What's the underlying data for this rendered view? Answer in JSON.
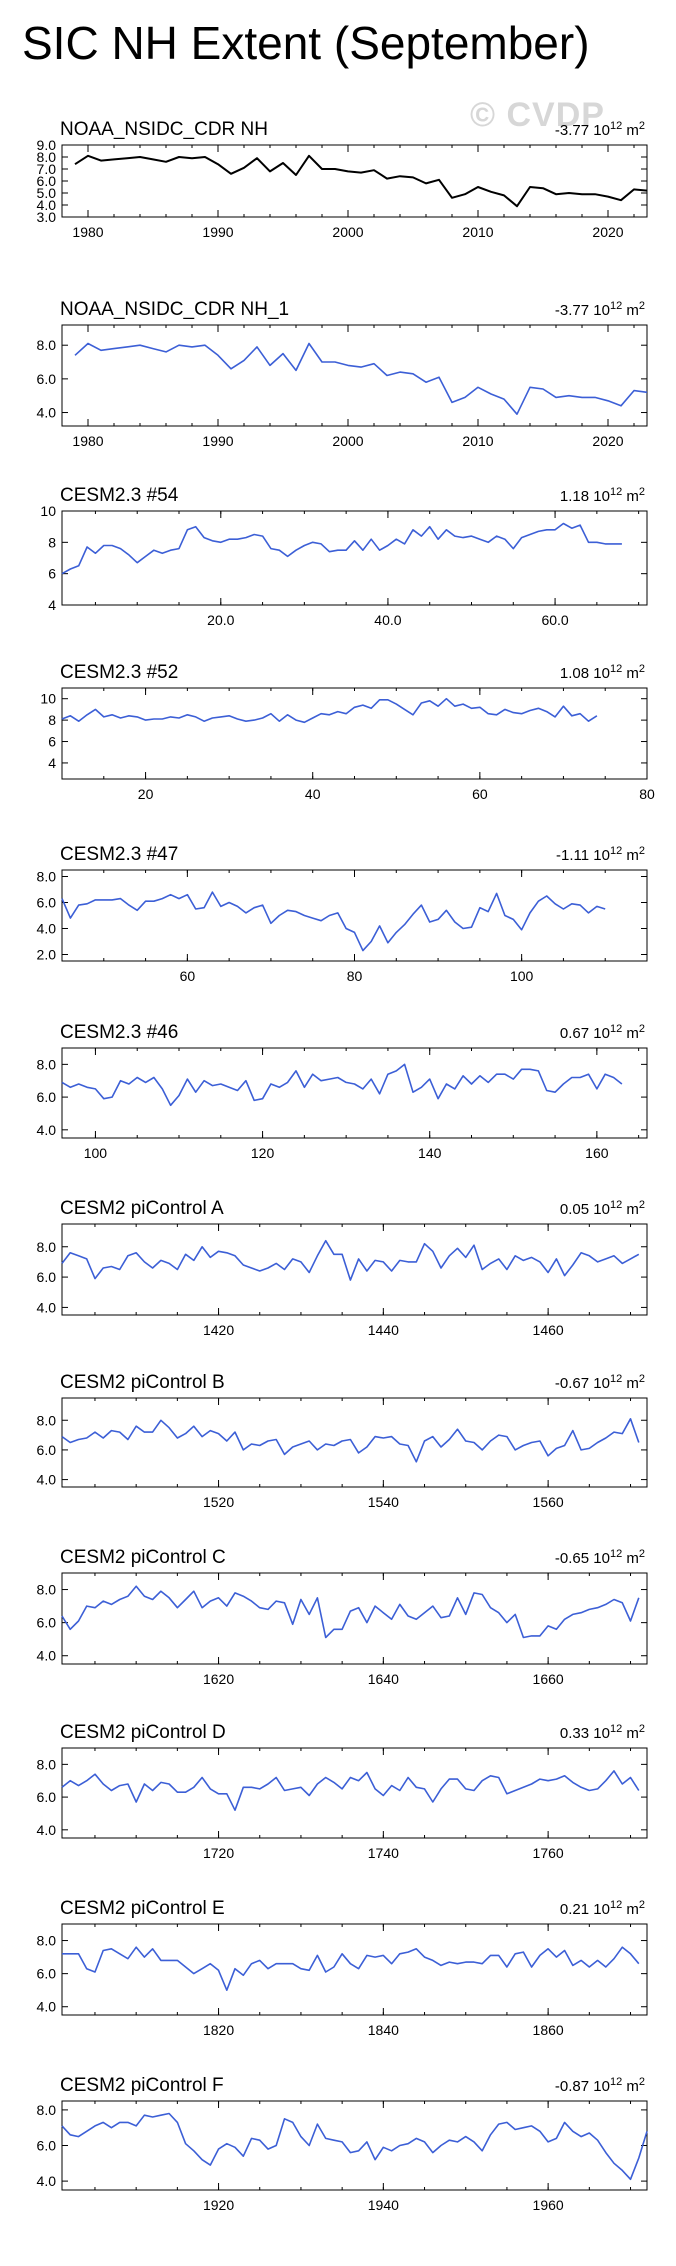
{
  "title": "SIC NH Extent (September)",
  "watermark": "© CVDP",
  "colors": {
    "observed": "#000000",
    "model": "#3c5fd6",
    "axis": "#000000"
  },
  "chart_data": [
    {
      "type": "line",
      "title": "NOAA_NSIDC_CDR NH",
      "trend": "-3.77 10",
      "trend_exp": "12",
      "trend_unit": " m",
      "trend_unit_exp": "2",
      "xlim": [
        1978,
        2023
      ],
      "ylim": [
        3.0,
        9.0
      ],
      "yticks": [
        3.0,
        4.0,
        5.0,
        6.0,
        7.0,
        8.0,
        9.0
      ],
      "yticklabels": [
        "3.0",
        "4.0",
        "5.0",
        "6.0",
        "7.0",
        "8.0",
        "9.0"
      ],
      "xticks": [
        1980,
        1990,
        2000,
        2010,
        2020
      ],
      "xticklabels": [
        "1980",
        "1990",
        "2000",
        "2010",
        "2020"
      ],
      "x_start": 1979,
      "values": [
        7.4,
        8.1,
        7.7,
        7.8,
        7.9,
        8.0,
        7.8,
        7.6,
        8.0,
        7.9,
        8.0,
        7.4,
        6.6,
        7.1,
        7.9,
        6.8,
        7.5,
        6.5,
        8.1,
        7.0,
        7.0,
        6.8,
        6.7,
        6.9,
        6.2,
        6.4,
        6.3,
        5.8,
        6.1,
        4.6,
        4.9,
        5.5,
        5.1,
        4.8,
        3.9,
        5.5,
        5.4,
        4.9,
        5.0,
        4.9,
        4.9,
        4.7,
        4.4,
        5.3,
        5.2
      ]
    },
    {
      "type": "line",
      "title": "NOAA_NSIDC_CDR NH_1",
      "trend": "-3.77 10",
      "trend_exp": "12",
      "trend_unit": " m",
      "trend_unit_exp": "2",
      "xlim": [
        1978,
        2023
      ],
      "ylim": [
        3.2,
        9.2
      ],
      "yticks": [
        4.0,
        6.0,
        8.0
      ],
      "yticklabels": [
        "4.0",
        "6.0",
        "8.0"
      ],
      "xticks": [
        1980,
        1990,
        2000,
        2010,
        2020
      ],
      "xticklabels": [
        "1980",
        "1990",
        "2000",
        "2010",
        "2020"
      ],
      "x_start": 1979,
      "values": [
        7.4,
        8.1,
        7.7,
        7.8,
        7.9,
        8.0,
        7.8,
        7.6,
        8.0,
        7.9,
        8.0,
        7.4,
        6.6,
        7.1,
        7.9,
        6.8,
        7.5,
        6.5,
        8.1,
        7.0,
        7.0,
        6.8,
        6.7,
        6.9,
        6.2,
        6.4,
        6.3,
        5.8,
        6.1,
        4.6,
        4.9,
        5.5,
        5.1,
        4.8,
        3.9,
        5.5,
        5.4,
        4.9,
        5.0,
        4.9,
        4.9,
        4.7,
        4.4,
        5.3,
        5.2
      ]
    },
    {
      "type": "line",
      "title": "CESM2.3 #54",
      "trend": "1.18 10",
      "trend_exp": "12",
      "trend_unit": " m",
      "trend_unit_exp": "2",
      "xlim": [
        1,
        71
      ],
      "ylim": [
        4.0,
        10.0
      ],
      "yticks": [
        4,
        6,
        8,
        10
      ],
      "yticklabels": [
        "4",
        "6",
        "8",
        "10"
      ],
      "xticks": [
        20,
        40,
        60
      ],
      "xticklabels": [
        "20.0",
        "40.0",
        "60.0"
      ],
      "x_start": 1,
      "values": [
        6.0,
        6.3,
        6.5,
        7.7,
        7.3,
        7.8,
        7.8,
        7.6,
        7.2,
        6.7,
        7.1,
        7.5,
        7.3,
        7.5,
        7.6,
        8.8,
        9.0,
        8.3,
        8.1,
        8.0,
        8.2,
        8.2,
        8.3,
        8.5,
        8.4,
        7.6,
        7.5,
        7.1,
        7.5,
        7.8,
        8.0,
        7.9,
        7.4,
        7.5,
        7.5,
        8.1,
        7.5,
        8.2,
        7.5,
        7.8,
        8.2,
        7.9,
        8.8,
        8.4,
        9.0,
        8.2,
        8.8,
        8.4,
        8.3,
        8.4,
        8.2,
        8.0,
        8.4,
        8.2,
        7.6,
        8.3,
        8.5,
        8.7,
        8.8,
        8.8,
        9.2,
        8.9,
        9.1,
        8.0,
        8.0,
        7.9,
        7.9,
        7.9
      ]
    },
    {
      "type": "line",
      "title": "CESM2.3 #52",
      "trend": "1.08 10",
      "trend_exp": "12",
      "trend_unit": " m",
      "trend_unit_exp": "2",
      "xlim": [
        10,
        80
      ],
      "ylim": [
        2.5,
        11.0
      ],
      "yticks": [
        4,
        6,
        8,
        10
      ],
      "yticklabels": [
        "4",
        "6",
        "8",
        "10"
      ],
      "xticks": [
        20,
        40,
        60,
        80
      ],
      "xticklabels": [
        "20",
        "40",
        "60",
        "80"
      ],
      "x_start": 10,
      "values": [
        8.1,
        8.4,
        7.9,
        8.5,
        9.0,
        8.3,
        8.5,
        8.2,
        8.4,
        8.3,
        8.0,
        8.1,
        8.1,
        8.3,
        8.2,
        8.5,
        8.3,
        7.9,
        8.2,
        8.3,
        8.4,
        8.1,
        7.9,
        8.0,
        8.2,
        8.6,
        7.9,
        8.5,
        8.0,
        7.8,
        8.2,
        8.6,
        8.5,
        8.8,
        8.6,
        9.2,
        9.4,
        9.1,
        9.9,
        9.9,
        9.5,
        9.0,
        8.5,
        9.6,
        9.8,
        9.3,
        10.0,
        9.3,
        9.5,
        9.1,
        9.2,
        8.6,
        8.5,
        9.0,
        8.7,
        8.6,
        8.9,
        9.1,
        8.8,
        8.3,
        9.3,
        8.4,
        8.6,
        7.9,
        8.4
      ]
    },
    {
      "type": "line",
      "title": "CESM2.3 #47",
      "trend": "-1.11 10",
      "trend_exp": "12",
      "trend_unit": " m",
      "trend_unit_exp": "2",
      "xlim": [
        45,
        115
      ],
      "ylim": [
        1.5,
        8.5
      ],
      "yticks": [
        2.0,
        4.0,
        6.0,
        8.0
      ],
      "yticklabels": [
        "2.0",
        "4.0",
        "6.0",
        "8.0"
      ],
      "xticks": [
        60,
        80,
        100
      ],
      "xticklabels": [
        "60",
        "80",
        "100"
      ],
      "x_start": 45,
      "values": [
        6.3,
        4.8,
        5.8,
        5.9,
        6.2,
        6.2,
        6.2,
        6.3,
        5.8,
        5.4,
        6.1,
        6.1,
        6.3,
        6.6,
        6.3,
        6.6,
        5.5,
        5.6,
        6.8,
        5.7,
        6.0,
        5.7,
        5.2,
        5.6,
        5.8,
        4.4,
        5.0,
        5.4,
        5.3,
        5.0,
        4.8,
        4.6,
        5.0,
        5.2,
        4.0,
        3.7,
        2.3,
        3.0,
        4.2,
        2.9,
        3.7,
        4.3,
        5.1,
        5.8,
        4.5,
        4.7,
        5.4,
        4.5,
        4.0,
        4.1,
        5.6,
        5.3,
        6.7,
        5.0,
        4.7,
        3.9,
        5.2,
        6.1,
        6.5,
        5.9,
        5.5,
        5.9,
        5.8,
        5.2,
        5.7,
        5.5
      ]
    },
    {
      "type": "line",
      "title": "CESM2.3 #46",
      "trend": "0.67 10",
      "trend_exp": "12",
      "trend_unit": " m",
      "trend_unit_exp": "2",
      "xlim": [
        96,
        166
      ],
      "ylim": [
        3.5,
        9.0
      ],
      "yticks": [
        4.0,
        6.0,
        8.0
      ],
      "yticklabels": [
        "4.0",
        "6.0",
        "8.0"
      ],
      "xticks": [
        100,
        120,
        140,
        160
      ],
      "xticklabels": [
        "100",
        "120",
        "140",
        "160"
      ],
      "x_start": 96,
      "values": [
        6.9,
        6.6,
        6.8,
        6.6,
        6.5,
        5.9,
        6.0,
        7.0,
        6.8,
        7.2,
        6.9,
        7.2,
        6.5,
        5.5,
        6.1,
        7.1,
        6.3,
        7.0,
        6.7,
        6.8,
        6.6,
        6.4,
        7.0,
        5.8,
        5.9,
        6.8,
        6.6,
        6.9,
        7.6,
        6.6,
        7.4,
        7.0,
        7.1,
        7.2,
        6.9,
        6.8,
        6.5,
        7.1,
        6.2,
        7.4,
        7.6,
        8.0,
        6.3,
        6.6,
        7.1,
        5.9,
        6.8,
        6.5,
        7.3,
        6.8,
        7.3,
        6.9,
        7.4,
        7.4,
        7.1,
        7.7,
        7.7,
        7.6,
        6.4,
        6.3,
        6.8,
        7.2,
        7.2,
        7.4,
        6.5,
        7.4,
        7.2,
        6.8
      ]
    },
    {
      "type": "line",
      "title": "CESM2 piControl A",
      "trend": "0.05 10",
      "trend_exp": "12",
      "trend_unit": " m",
      "trend_unit_exp": "2",
      "xlim": [
        1401,
        1472
      ],
      "ylim": [
        3.5,
        9.5
      ],
      "yticks": [
        4.0,
        6.0,
        8.0
      ],
      "yticklabels": [
        "4.0",
        "6.0",
        "8.0"
      ],
      "xticks": [
        1420,
        1440,
        1460
      ],
      "xticklabels": [
        "1420",
        "1440",
        "1460"
      ],
      "x_start": 1401,
      "values": [
        6.9,
        7.6,
        7.4,
        7.2,
        5.9,
        6.6,
        6.7,
        6.5,
        7.4,
        7.6,
        7.0,
        6.6,
        7.1,
        6.9,
        6.5,
        7.5,
        7.1,
        8.0,
        7.3,
        7.7,
        7.6,
        7.4,
        6.8,
        6.6,
        6.4,
        6.6,
        6.9,
        6.5,
        7.2,
        7.0,
        6.3,
        7.4,
        8.4,
        7.5,
        7.5,
        5.8,
        7.2,
        6.4,
        7.1,
        7.0,
        6.4,
        7.1,
        7.0,
        7.0,
        8.2,
        7.7,
        6.6,
        7.4,
        7.9,
        7.3,
        8.1,
        6.5,
        6.9,
        7.2,
        6.5,
        7.4,
        7.1,
        7.3,
        7.0,
        6.3,
        7.2,
        6.1,
        6.8,
        7.6,
        7.4,
        7.0,
        7.2,
        7.4,
        6.9,
        7.2,
        7.5
      ]
    },
    {
      "type": "line",
      "title": "CESM2 piControl B",
      "trend": "-0.67 10",
      "trend_exp": "12",
      "trend_unit": " m",
      "trend_unit_exp": "2",
      "xlim": [
        1501,
        1572
      ],
      "ylim": [
        3.5,
        9.5
      ],
      "yticks": [
        4.0,
        6.0,
        8.0
      ],
      "yticklabels": [
        "4.0",
        "6.0",
        "8.0"
      ],
      "xticks": [
        1520,
        1540,
        1560
      ],
      "xticklabels": [
        "1520",
        "1540",
        "1560"
      ],
      "x_start": 1501,
      "values": [
        6.9,
        6.5,
        6.7,
        6.8,
        7.2,
        6.8,
        7.3,
        7.2,
        6.7,
        7.6,
        7.2,
        7.2,
        8.0,
        7.5,
        6.8,
        7.1,
        7.6,
        6.9,
        7.3,
        7.1,
        6.6,
        7.2,
        6.0,
        6.4,
        6.3,
        6.6,
        6.7,
        5.7,
        6.2,
        6.4,
        6.6,
        6.0,
        6.4,
        6.3,
        6.6,
        6.7,
        5.8,
        6.2,
        6.9,
        6.8,
        6.9,
        6.4,
        6.3,
        5.2,
        6.6,
        6.9,
        6.2,
        6.7,
        7.4,
        6.6,
        6.5,
        6.0,
        6.6,
        7.0,
        6.9,
        6.0,
        6.3,
        6.5,
        6.6,
        5.6,
        6.1,
        6.3,
        7.3,
        6.0,
        6.1,
        6.5,
        6.8,
        7.2,
        7.1,
        8.1,
        6.5
      ]
    },
    {
      "type": "line",
      "title": "CESM2 piControl C",
      "trend": "-0.65 10",
      "trend_exp": "12",
      "trend_unit": " m",
      "trend_unit_exp": "2",
      "xlim": [
        1601,
        1672
      ],
      "ylim": [
        3.5,
        9.0
      ],
      "yticks": [
        4.0,
        6.0,
        8.0
      ],
      "yticklabels": [
        "4.0",
        "6.0",
        "8.0"
      ],
      "xticks": [
        1620,
        1640,
        1660
      ],
      "xticklabels": [
        "1620",
        "1640",
        "1660"
      ],
      "x_start": 1601,
      "values": [
        6.4,
        5.6,
        6.1,
        7.0,
        6.9,
        7.3,
        7.1,
        7.4,
        7.6,
        8.2,
        7.6,
        7.4,
        7.9,
        7.5,
        6.9,
        7.4,
        7.9,
        6.9,
        7.3,
        7.5,
        7.0,
        7.8,
        7.6,
        7.3,
        6.9,
        6.8,
        7.3,
        7.2,
        5.9,
        7.4,
        6.5,
        7.5,
        5.1,
        5.6,
        5.6,
        6.7,
        6.9,
        6.0,
        7.0,
        6.6,
        6.2,
        7.1,
        6.4,
        6.2,
        6.6,
        7.0,
        6.3,
        6.4,
        7.5,
        6.5,
        7.8,
        7.7,
        6.9,
        6.6,
        6.0,
        6.5,
        5.1,
        5.2,
        5.2,
        5.8,
        5.6,
        6.2,
        6.5,
        6.6,
        6.8,
        6.9,
        7.1,
        7.4,
        7.2,
        6.1,
        7.5
      ]
    },
    {
      "type": "line",
      "title": "CESM2 piControl D",
      "trend": "0.33 10",
      "trend_exp": "12",
      "trend_unit": " m",
      "trend_unit_exp": "2",
      "xlim": [
        1701,
        1772
      ],
      "ylim": [
        3.5,
        9.0
      ],
      "yticks": [
        4.0,
        6.0,
        8.0
      ],
      "yticklabels": [
        "4.0",
        "6.0",
        "8.0"
      ],
      "xticks": [
        1720,
        1740,
        1760
      ],
      "xticklabels": [
        "1720",
        "1740",
        "1760"
      ],
      "x_start": 1701,
      "values": [
        6.6,
        7.0,
        6.7,
        7.0,
        7.4,
        6.8,
        6.4,
        6.7,
        6.8,
        5.7,
        6.8,
        6.4,
        6.9,
        6.8,
        6.3,
        6.3,
        6.6,
        7.2,
        6.5,
        6.2,
        6.2,
        5.2,
        6.6,
        6.6,
        6.5,
        6.8,
        7.2,
        6.4,
        6.5,
        6.6,
        6.1,
        6.8,
        7.2,
        6.9,
        6.5,
        7.2,
        7.0,
        7.5,
        6.5,
        6.1,
        6.7,
        6.4,
        7.2,
        6.6,
        6.5,
        5.7,
        6.5,
        7.1,
        7.1,
        6.5,
        6.4,
        7.0,
        7.3,
        7.2,
        6.2,
        6.4,
        6.6,
        6.8,
        7.1,
        7.0,
        7.1,
        7.3,
        6.9,
        6.6,
        6.4,
        6.5,
        7.0,
        7.6,
        6.8,
        7.2,
        6.4
      ]
    },
    {
      "type": "line",
      "title": "CESM2 piControl E",
      "trend": "0.21 10",
      "trend_exp": "12",
      "trend_unit": " m",
      "trend_unit_exp": "2",
      "xlim": [
        1801,
        1872
      ],
      "ylim": [
        3.5,
        9.0
      ],
      "yticks": [
        4.0,
        6.0,
        8.0
      ],
      "yticklabels": [
        "4.0",
        "6.0",
        "8.0"
      ],
      "xticks": [
        1820,
        1840,
        1860
      ],
      "xticklabels": [
        "1820",
        "1840",
        "1860"
      ],
      "x_start": 1801,
      "values": [
        7.2,
        7.2,
        7.2,
        6.3,
        6.1,
        7.4,
        7.5,
        7.2,
        6.9,
        7.6,
        7.0,
        7.5,
        6.8,
        6.8,
        6.8,
        6.4,
        6.0,
        6.3,
        6.6,
        6.2,
        5.0,
        6.3,
        5.9,
        6.6,
        6.8,
        6.3,
        6.6,
        6.6,
        6.6,
        6.3,
        6.2,
        7.1,
        6.1,
        6.4,
        7.2,
        6.6,
        6.3,
        7.1,
        7.0,
        7.1,
        6.6,
        7.2,
        7.3,
        7.5,
        7.0,
        6.8,
        6.5,
        6.7,
        6.6,
        6.7,
        6.7,
        6.6,
        7.1,
        7.1,
        6.4,
        7.2,
        7.3,
        6.4,
        7.1,
        7.5,
        7.0,
        7.4,
        6.5,
        6.8,
        6.4,
        6.8,
        6.4,
        6.9,
        7.6,
        7.2,
        6.6
      ]
    },
    {
      "type": "line",
      "title": "CESM2 piControl F",
      "trend": "-0.87 10",
      "trend_exp": "12",
      "trend_unit": " m",
      "trend_unit_exp": "2",
      "xlim": [
        1901,
        1972
      ],
      "ylim": [
        3.5,
        8.5
      ],
      "yticks": [
        4.0,
        6.0,
        8.0
      ],
      "yticklabels": [
        "4.0",
        "6.0",
        "8.0"
      ],
      "xticks": [
        1920,
        1940,
        1960
      ],
      "xticklabels": [
        "1920",
        "1940",
        "1960"
      ],
      "x_start": 1901,
      "values": [
        7.1,
        6.6,
        6.5,
        6.8,
        7.1,
        7.3,
        7.0,
        7.3,
        7.3,
        7.1,
        7.7,
        7.6,
        7.7,
        7.8,
        7.3,
        6.1,
        5.7,
        5.2,
        4.9,
        5.8,
        6.1,
        5.9,
        5.4,
        6.4,
        6.3,
        5.8,
        6.0,
        7.5,
        7.3,
        6.5,
        6.0,
        7.2,
        6.4,
        6.3,
        6.2,
        5.6,
        5.7,
        6.2,
        5.2,
        5.9,
        5.7,
        6.0,
        6.1,
        6.4,
        6.2,
        5.6,
        6.0,
        6.3,
        6.2,
        6.5,
        6.2,
        5.7,
        6.6,
        7.2,
        7.3,
        6.9,
        7.0,
        7.1,
        6.8,
        6.2,
        6.4,
        7.3,
        6.8,
        6.5,
        6.7,
        6.3,
        5.6,
        5.0,
        4.6,
        4.1,
        5.3,
        6.8
      ]
    }
  ]
}
